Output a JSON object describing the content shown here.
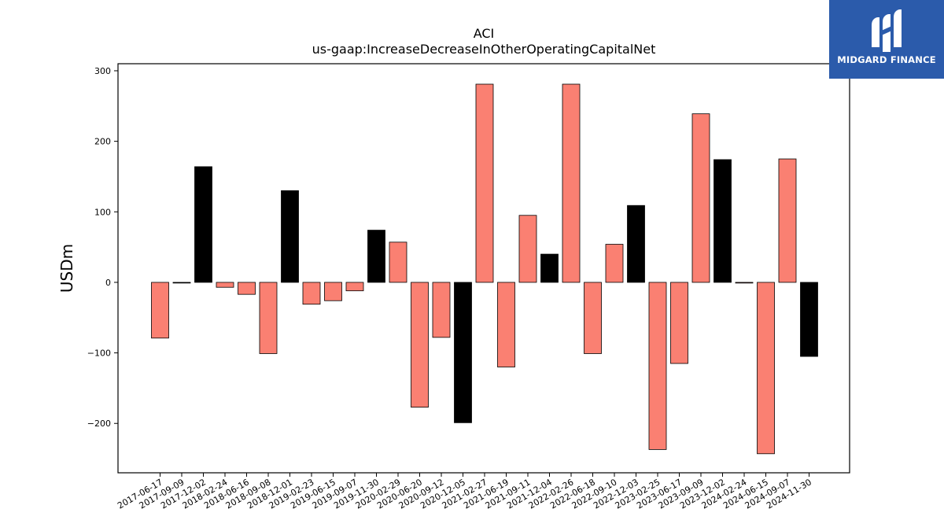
{
  "brand": {
    "name": "MIDGARD FINANCE",
    "color": "#2b5bab",
    "icon": "midgard-logo-icon"
  },
  "chart_data": {
    "type": "bar",
    "title": "ACI",
    "subtitle": "us-gaap:IncreaseDecreaseInOtherOperatingCapitalNet",
    "xlabel": "",
    "ylabel": "USDm",
    "ylim": [
      -270,
      310
    ],
    "yticks": [
      300,
      200,
      100,
      0,
      -100,
      -200
    ],
    "grid": false,
    "colors": {
      "quarter": "#fa8072",
      "year_end": "#000000",
      "edge": "#000000"
    },
    "categories": [
      "2017-06-17",
      "2017-09-09",
      "2017-12-02",
      "2018-02-24",
      "2018-06-16",
      "2018-09-08",
      "2018-12-01",
      "2019-02-23",
      "2019-06-15",
      "2019-09-07",
      "2019-11-30",
      "2020-02-29",
      "2020-06-20",
      "2020-09-12",
      "2020-12-05",
      "2021-02-27",
      "2021-06-19",
      "2021-09-11",
      "2021-12-04",
      "2022-02-26",
      "2022-06-18",
      "2022-09-10",
      "2022-12-03",
      "2023-02-25",
      "2023-06-17",
      "2023-09-09",
      "2023-12-02",
      "2024-02-24",
      "2024-06-15",
      "2024-09-07",
      "2024-11-30"
    ],
    "values": [
      -79,
      -1,
      164,
      -7,
      -17,
      -101,
      130,
      -31,
      -26,
      -12,
      74,
      57,
      -177,
      -78,
      -199,
      281,
      -120,
      95,
      40,
      281,
      -101,
      54,
      109,
      -237,
      -115,
      239,
      174,
      -1,
      -243,
      175,
      -105
    ],
    "highlight": [
      false,
      true,
      true,
      false,
      false,
      false,
      true,
      false,
      false,
      false,
      true,
      false,
      false,
      false,
      true,
      false,
      false,
      false,
      true,
      false,
      false,
      false,
      true,
      false,
      false,
      false,
      true,
      false,
      false,
      false,
      true
    ]
  }
}
